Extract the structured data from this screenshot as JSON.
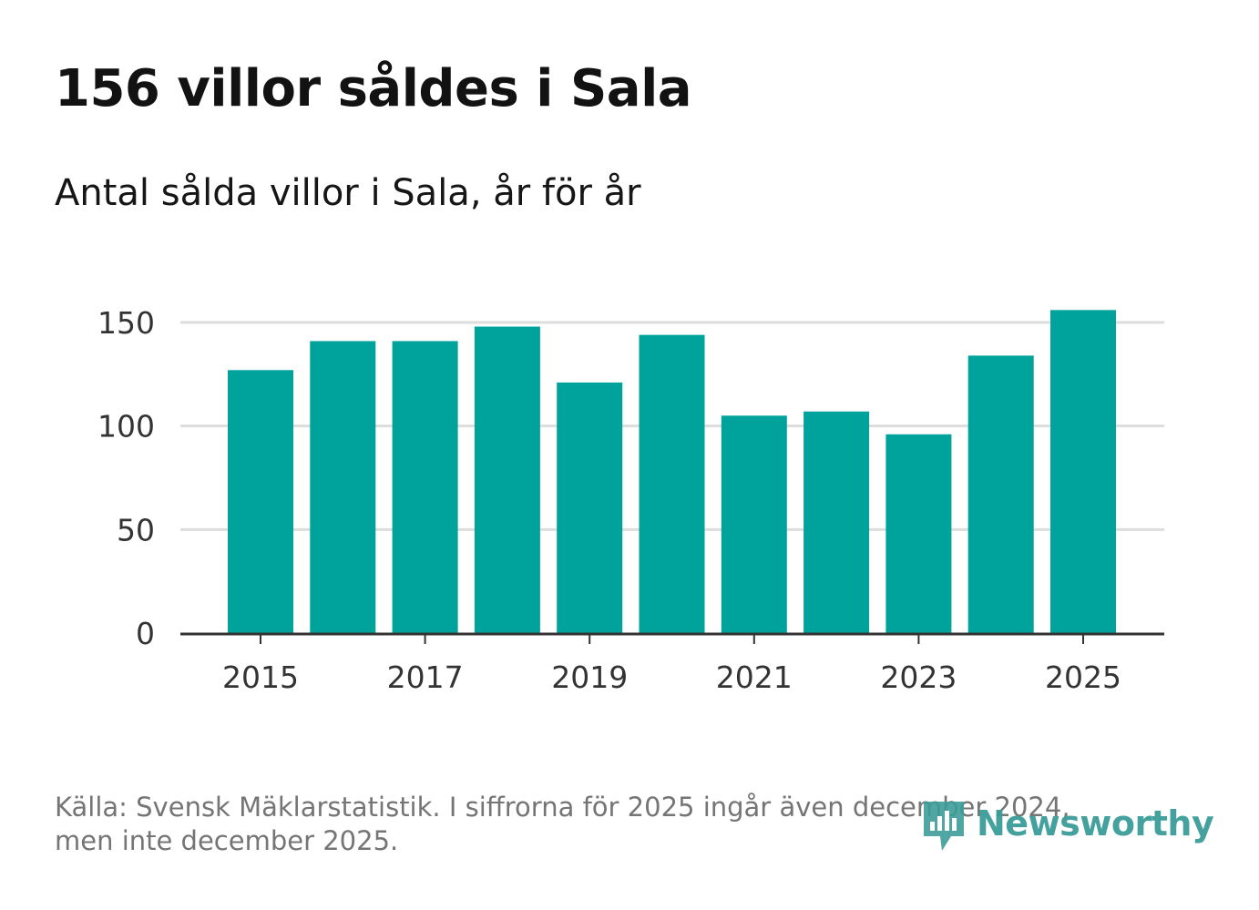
{
  "title": "156 villor såldes i Sala",
  "subtitle": "Antal sålda villor i Sala, år för år",
  "source_line1": "Källa: Svensk Mäklarstatistik. I siffrorna för 2025 ingår även december 2024,",
  "source_line2": "men inte december 2025.",
  "brand": {
    "name": "Newsworthy",
    "logo_icon": "newsworthy-logo-icon",
    "color": "#3c9c98"
  },
  "colors": {
    "bar": "#00a39b",
    "grid": "#dddddd",
    "axis": "#333333",
    "text": "#333333"
  },
  "chart_data": {
    "type": "bar",
    "title": "Antal sålda villor i Sala, år för år",
    "xlabel": "",
    "ylabel": "",
    "categories": [
      "2015",
      "2016",
      "2017",
      "2018",
      "2019",
      "2020",
      "2021",
      "2022",
      "2023",
      "2024",
      "2025"
    ],
    "values": [
      127,
      141,
      141,
      148,
      121,
      144,
      105,
      107,
      96,
      134,
      156
    ],
    "ylim": [
      0,
      150
    ],
    "yticks": [
      0,
      50,
      100,
      150
    ],
    "xticks": [
      "2015",
      "2017",
      "2019",
      "2021",
      "2023",
      "2025"
    ],
    "grid": true,
    "legend": "none"
  }
}
